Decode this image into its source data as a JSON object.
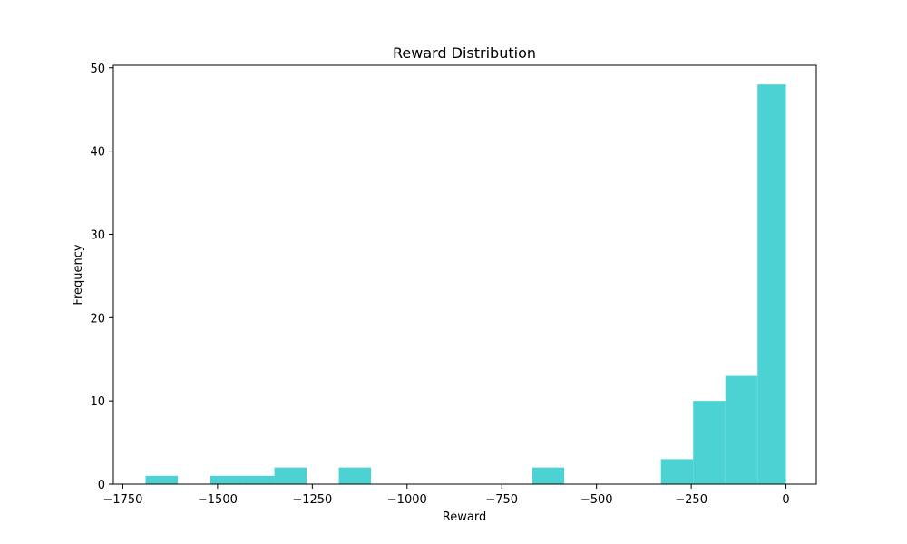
{
  "chart_data": {
    "type": "bar",
    "title": "Reward Distribution",
    "xlabel": "Reward",
    "ylabel": "Frequency",
    "bar_color": "#4dd2d3",
    "xlim": [
      -1775,
      80
    ],
    "ylim": [
      0,
      50.3
    ],
    "xticks": [
      -1750,
      -1500,
      -1250,
      -1000,
      -750,
      -500,
      -250,
      0
    ],
    "xtick_labels": [
      "−1750",
      "−1500",
      "−1250",
      "−1000",
      "−750",
      "−500",
      "−250",
      "0"
    ],
    "yticks": [
      0,
      10,
      20,
      30,
      40,
      50
    ],
    "ytick_labels": [
      "0",
      "10",
      "20",
      "30",
      "40",
      "50"
    ],
    "bins": [
      {
        "x0": -1690,
        "x1": -1605,
        "count": 1
      },
      {
        "x0": -1605,
        "x1": -1520,
        "count": 0
      },
      {
        "x0": -1520,
        "x1": -1435,
        "count": 1
      },
      {
        "x0": -1435,
        "x1": -1350,
        "count": 1
      },
      {
        "x0": -1350,
        "x1": -1265,
        "count": 2
      },
      {
        "x0": -1265,
        "x1": -1180,
        "count": 0
      },
      {
        "x0": -1180,
        "x1": -1095,
        "count": 2
      },
      {
        "x0": -1095,
        "x1": -1010,
        "count": 0
      },
      {
        "x0": -1010,
        "x1": -925,
        "count": 0
      },
      {
        "x0": -925,
        "x1": -840,
        "count": 0
      },
      {
        "x0": -840,
        "x1": -755,
        "count": 0
      },
      {
        "x0": -755,
        "x1": -670,
        "count": 0
      },
      {
        "x0": -670,
        "x1": -585,
        "count": 2
      },
      {
        "x0": -585,
        "x1": -500,
        "count": 0
      },
      {
        "x0": -500,
        "x1": -415,
        "count": 0
      },
      {
        "x0": -415,
        "x1": -330,
        "count": 0
      },
      {
        "x0": -330,
        "x1": -245,
        "count": 3
      },
      {
        "x0": -245,
        "x1": -160,
        "count": 10
      },
      {
        "x0": -160,
        "x1": -75,
        "count": 13
      },
      {
        "x0": -75,
        "x1": 0,
        "count": 48
      }
    ]
  }
}
